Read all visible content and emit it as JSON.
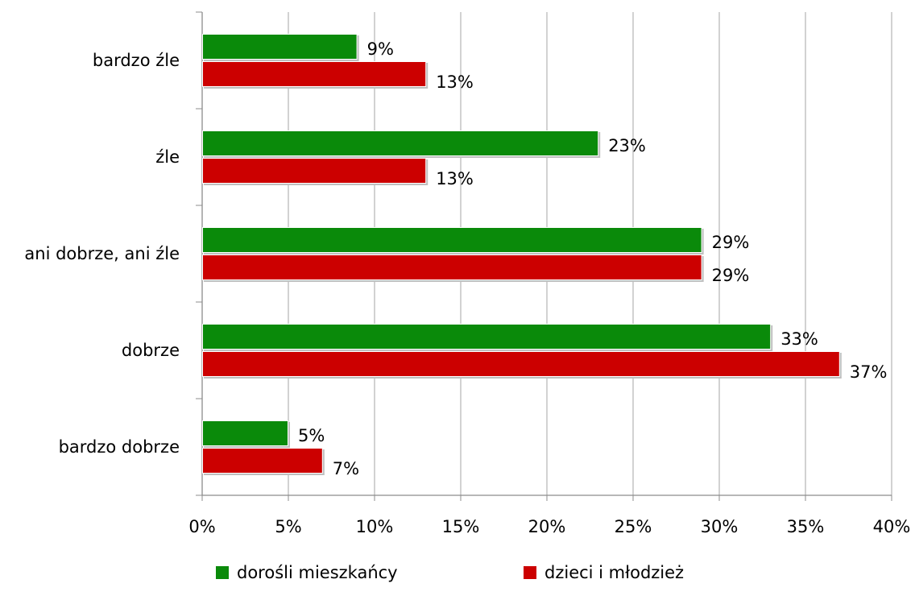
{
  "chart_data": {
    "type": "bar",
    "orientation": "horizontal",
    "title": "",
    "xlabel": "",
    "ylabel": "",
    "categories": [
      "bardzo źle",
      "źle",
      "ani dobrze, ani źle",
      "dobrze",
      "bardzo dobrze"
    ],
    "series": [
      {
        "name": "dorośli mieszkańcy",
        "color": "#0a8a0a",
        "values": [
          9,
          23,
          29,
          33,
          5
        ],
        "labels": [
          "9%",
          "23%",
          "29%",
          "33%",
          "5%"
        ]
      },
      {
        "name": "dzieci i młodzież",
        "color": "#cc0000",
        "values": [
          13,
          13,
          29,
          37,
          7
        ],
        "labels": [
          "13%",
          "13%",
          "29%",
          "37%",
          "7%"
        ]
      }
    ],
    "xlim": [
      0,
      40
    ],
    "xticks": [
      0,
      5,
      10,
      15,
      20,
      25,
      30,
      35,
      40
    ],
    "xtick_labels": [
      "0%",
      "5%",
      "10%",
      "15%",
      "20%",
      "25%",
      "30%",
      "35%",
      "40%"
    ],
    "grid": "vertical",
    "legend_position": "bottom"
  }
}
